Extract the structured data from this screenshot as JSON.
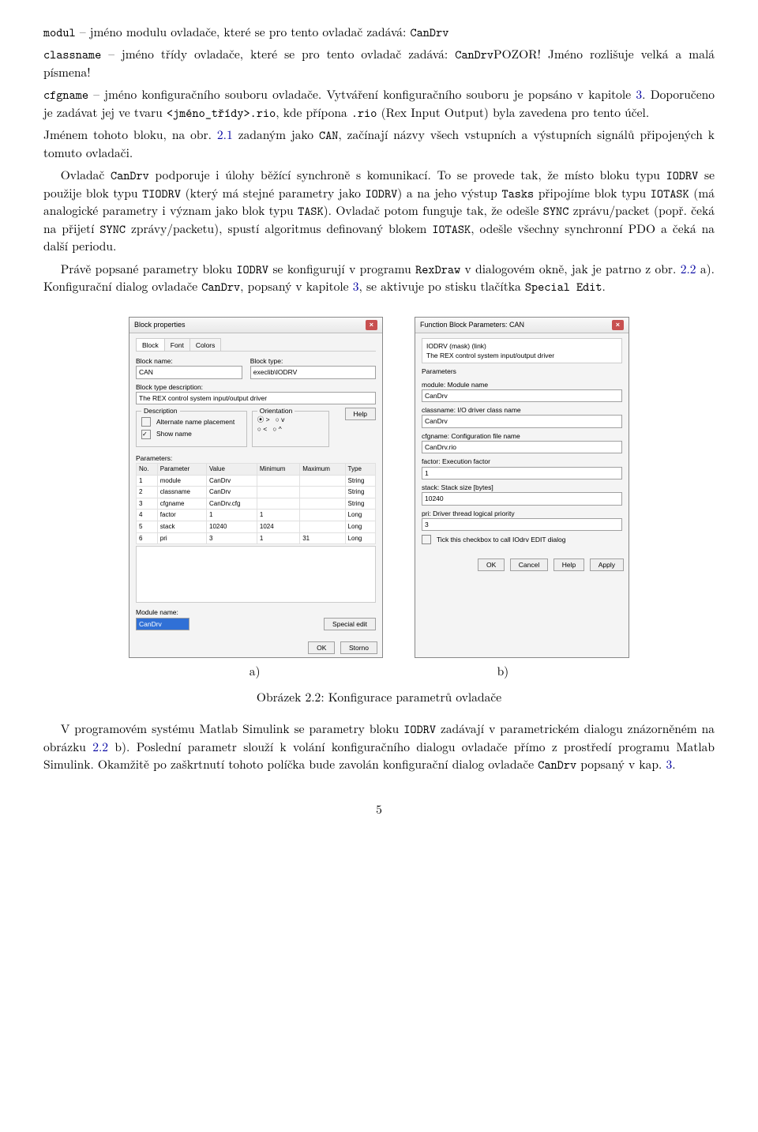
{
  "p1": {
    "term": "modul",
    "rest": " – jméno modulu ovladače, které se pro tento ovladač zadává: ",
    "code": "CanDrv"
  },
  "p2": {
    "term": "classname",
    "a": " – jméno třídy ovladače, které se pro tento ovladač zadává: ",
    "code": "CanDrv",
    "b": "POZOR! Jméno rozlišuje velká a malá písmena!"
  },
  "p3": {
    "term": "cfgname",
    "a": " – jméno konfiguračního souboru ovladače. Vytváření konfiguračního souboru je popsáno v kapitole ",
    "chap": "3",
    "b": ". Doporučeno je zadávat jej ve tvaru ",
    "code1": "<jméno_třídy>.rio",
    "c": ", kde přípona ",
    "code2": ".rio",
    "d": " (Rex Input Output) byla zavedena pro tento účel."
  },
  "p4": {
    "a": "Jménem tohoto bloku, na obr. ",
    "fig": "2.1",
    "b": " zadaným jako ",
    "code": "CAN",
    "c": ", začínají názvy všech vstupních a výstupních signálů připojených k tomuto ovladači."
  },
  "p5": {
    "a": "Ovladač ",
    "c1": "CanDrv",
    "b": " podporuje i úlohy běžící synchroně s komunikací. To se provede tak, že místo bloku typu ",
    "c2": "IODRV",
    "c": " se použije blok typu ",
    "c3": "TIODRV",
    "d": " (který má stejné parametry jako ",
    "c4": "IODRV",
    "e": ") a na jeho výstup ",
    "c5": "Tasks",
    "f": " připojíme blok typu ",
    "c6": "IOTASK",
    "g": " (má analogické parametry i význam jako blok typu ",
    "c7": "TASK",
    "h": "). Ovladač potom funguje tak, že odešle ",
    "c8": "SYNC",
    "i": " zprávu/packet (popř. čeká na přijetí ",
    "c9": "SYNC",
    "j": " zprávy/packetu), spustí algoritmus definovaný blokem ",
    "c10": "IOTASK",
    "k": ", odešle všechny synchronní PDO a čeká na další periodu."
  },
  "p6": {
    "a": "Právě popsané parametry bloku ",
    "c1": "IODRV",
    "b": " se konfigurují v programu ",
    "c2": "RexDraw",
    "c": " v dialogovém okně, jak je patrno z obr. ",
    "fig": "2.2",
    "d": " a). Konfigurační dialog ovladače ",
    "c3": "CanDrv",
    "e": ", popsaný v kapitole ",
    "chap": "3",
    "f": ", se aktivuje po stisku tlačítka ",
    "c4": "Special Edit",
    "g": "."
  },
  "dialogA": {
    "title": "Block properties",
    "tabs": [
      "Block",
      "Font",
      "Colors"
    ],
    "blockname_lbl": "Block name:",
    "blockname": "CAN",
    "blocktype_lbl": "Block type:",
    "blocktype": "execlib\\IODRV",
    "btd_lbl": "Block type description:",
    "btd": "The REX control system input/output driver",
    "desc_lbl": "Description",
    "alt_lbl": "Alternate name placement",
    "show_lbl": "Show name",
    "orient_lbl": "Orientation",
    "help": "Help",
    "params_lbl": "Parameters:",
    "cols": [
      "No.",
      "Parameter",
      "Value",
      "Minimum",
      "Maximum",
      "Type"
    ],
    "rows": [
      [
        "1",
        "module",
        "CanDrv",
        "",
        "",
        "String"
      ],
      [
        "2",
        "classname",
        "CanDrv",
        "",
        "",
        "String"
      ],
      [
        "3",
        "cfgname",
        "CanDrv.cfg",
        "",
        "",
        "String"
      ],
      [
        "4",
        "factor",
        "1",
        "1",
        "",
        "Long"
      ],
      [
        "5",
        "stack",
        "10240",
        "1024",
        "",
        "Long"
      ],
      [
        "6",
        "pri",
        "3",
        "1",
        "31",
        "Long"
      ]
    ],
    "modname_lbl": "Module name:",
    "modname": "CanDrv",
    "spedit": "Special edit",
    "ok": "OK",
    "storno": "Storno"
  },
  "dialogB": {
    "title": "Function Block Parameters: CAN",
    "l1": "IODRV (mask) (link)",
    "l2": "The REX control system input/output driver",
    "params": "Parameters",
    "f1l": "module: Module name",
    "f1": "CanDrv",
    "f2l": "classname: I/O driver class name",
    "f2": "CanDrv",
    "f3l": "cfgname: Configuration file name",
    "f3": "CanDrv.rio",
    "f4l": "factor: Execution factor",
    "f4": "1",
    "f5l": "stack: Stack size [bytes]",
    "f5": "10240",
    "f6l": "pri: Driver thread logical priority",
    "f6": "3",
    "cb": "Tick this checkbox to call IOdrv EDIT dialog",
    "ok": "OK",
    "cancel": "Cancel",
    "help": "Help",
    "apply": "Apply"
  },
  "caps": {
    "a": "a)",
    "b": "b)"
  },
  "figcap": {
    "pre": "Obrázek 2.2: ",
    "txt": "Konfigurace parametrů ovladače"
  },
  "p7": {
    "a": "V programovém systému Matlab Simulink se parametry bloku ",
    "c1": "IODRV",
    "b": " zadávají v parametrickém dialogu znázorněném na obrázku ",
    "fig": "2.2",
    "c": " b). Poslední parametr slouží k volání konfiguračního dialogu ovladače přímo z prostředí programu Matlab Simulink. Okamžitě po zaškrtnutí tohoto políčka bude zavolán konfigurační dialog ovladače ",
    "c2": "CanDrv",
    "d": " popsaný v kap. ",
    "chap": "3",
    "e": "."
  },
  "pagenum": "5"
}
